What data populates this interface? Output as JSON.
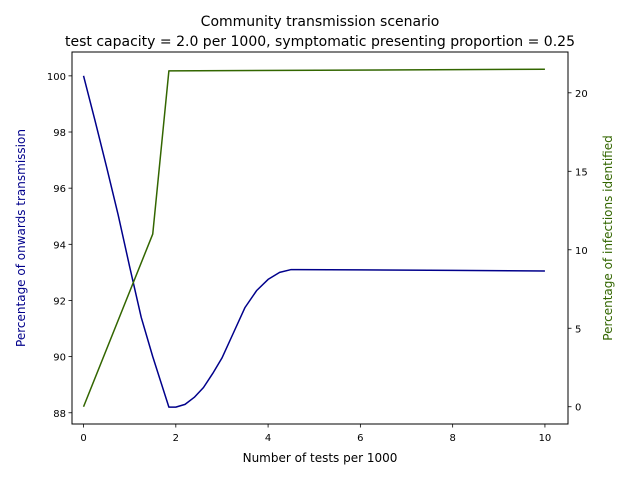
{
  "chart_data": {
    "type": "line",
    "title": "Community transmission scenario",
    "subtitle": "test capacity = 2.0 per 1000, symptomatic presenting proportion = 0.25",
    "xlabel": "Number of tests per 1000",
    "ylabel_left": "Percentage of onwards transmission",
    "ylabel_right": "Percentage of infections identified",
    "xlim": [
      -0.25,
      10.5
    ],
    "ylim_left": [
      87.6,
      100.85
    ],
    "ylim_right": [
      -1.1,
      22.6
    ],
    "xticks": [
      0,
      2,
      4,
      6,
      8,
      10
    ],
    "yticks_left": [
      88,
      90,
      92,
      94,
      96,
      98,
      100
    ],
    "yticks_right": [
      0,
      5,
      10,
      15,
      20
    ],
    "grid": false,
    "series": [
      {
        "axis": "left",
        "color": "#00008b",
        "x": [
          0,
          0.25,
          0.5,
          0.75,
          1.0,
          1.25,
          1.5,
          1.85,
          2.0,
          2.2,
          2.4,
          2.6,
          2.8,
          3.0,
          3.25,
          3.5,
          3.75,
          4.0,
          4.25,
          4.5,
          4.65,
          6,
          8,
          10
        ],
        "y": [
          100.0,
          98.4,
          96.75,
          95.05,
          93.2,
          91.4,
          90.0,
          88.2,
          88.2,
          88.3,
          88.55,
          88.9,
          89.4,
          89.95,
          90.85,
          91.75,
          92.35,
          92.75,
          93.0,
          93.1,
          93.1,
          93.09,
          93.07,
          93.05
        ]
      },
      {
        "axis": "right",
        "color": "#336600",
        "x": [
          0,
          1.5,
          1.85,
          10
        ],
        "y": [
          0.0,
          11.0,
          21.4,
          21.5
        ]
      }
    ]
  }
}
